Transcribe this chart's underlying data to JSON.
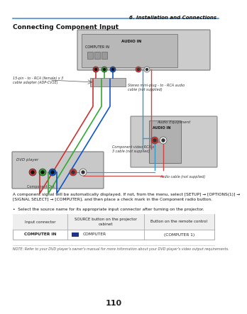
{
  "header_right": "6. Installation and Connections",
  "section_title": "Connecting Component Input",
  "body_text1": "A component signal will be automatically displayed. If not, from the menu, select [SETUP] → [OPTIONS(1)] →\n[SIGNAL SELECT] → [COMPUTER], and then place a check mark in the Component radio button.",
  "bullet1": "•  Select the source name for its appropriate input connector after turning on the projector.",
  "table_headers": [
    "Input connector",
    "SOURCE button on the projector\ncabinet",
    "Button on the remote control"
  ],
  "table_row": [
    "COMPUTER IN",
    "COMPUTER",
    "(COMPUTER 1)"
  ],
  "note": "NOTE: Refer to your DVD player’s owner’s manual for more information about your DVD player’s video output requirements.",
  "page_number": "110",
  "header_line_color": "#4a90d9",
  "table_border_color": "#aaaaaa",
  "bg_color": "#ffffff",
  "label_15pin": "15-pin - to - RCA (female) x 3\ncable adapter (ADP-CV1E)",
  "label_stereo": "Stereo mini-plug - to - RCA audio\ncable (not supplied)",
  "label_component": "Component video RCA x\n3 cable (not supplied)",
  "label_audio_cable": "Audio cable (not supplied)",
  "label_dvd": "DVD player",
  "label_audio_eq": "Audio Equipment",
  "label_audio_in": "AUDIO IN",
  "label_computer_in": "COMPUTER IN",
  "label_component_out": "Component Out",
  "dot_colors": [
    "#cc3333",
    "#33aa33",
    "#1155cc"
  ],
  "cable_colors": [
    "#cc3333",
    "#33aa33",
    "#1155cc"
  ],
  "projector_fill": "#d8d8d8",
  "dvd_fill": "#e0e0e0",
  "audio_eq_fill": "#d8d8d8"
}
